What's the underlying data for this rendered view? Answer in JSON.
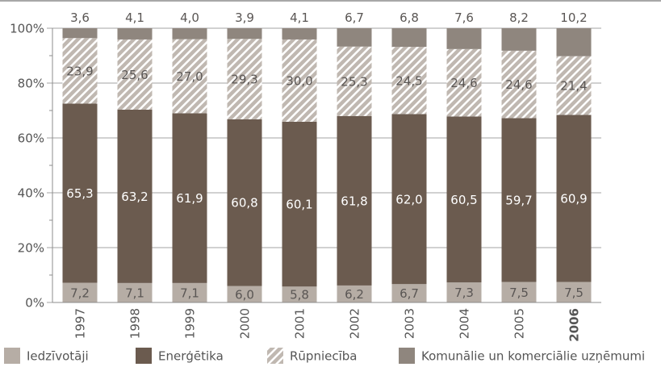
{
  "chart_data": {
    "type": "bar",
    "stacked": true,
    "normalized_percent": true,
    "categories": [
      "1997",
      "1998",
      "1999",
      "2000",
      "2001",
      "2002",
      "2003",
      "2004",
      "2005",
      "2006"
    ],
    "category_bold": [
      false,
      false,
      false,
      false,
      false,
      false,
      false,
      false,
      false,
      true
    ],
    "ylim": [
      0,
      100
    ],
    "yticks": [
      {
        "value": 0,
        "label": "0%"
      },
      {
        "value": 20,
        "label": "20%"
      },
      {
        "value": 40,
        "label": "40%"
      },
      {
        "value": 60,
        "label": "60%"
      },
      {
        "value": 80,
        "label": "80%"
      },
      {
        "value": 100,
        "label": "100%"
      }
    ],
    "minor_tick_step": 10,
    "grid": true,
    "legend": "bottom",
    "series": [
      {
        "name": "Iedzīvotāji",
        "values": [
          7.2,
          7.1,
          7.1,
          6.0,
          5.8,
          6.2,
          6.7,
          7.3,
          7.5,
          7.5
        ],
        "labels": [
          "7,2",
          "7,1",
          "7,1",
          "6,0",
          "5,8",
          "6,2",
          "6,7",
          "7,3",
          "7,5",
          "7,5"
        ],
        "color": "#b6ada5",
        "label_color": "#5a5654"
      },
      {
        "name": "Enerģētika",
        "values": [
          65.3,
          63.2,
          61.9,
          60.8,
          60.1,
          61.8,
          62.0,
          60.5,
          59.7,
          60.9
        ],
        "labels": [
          "65,3",
          "63,2",
          "61,9",
          "60,8",
          "60,1",
          "61,8",
          "62,0",
          "60,5",
          "59,7",
          "60,9"
        ],
        "color": "#6b5b4f",
        "label_color": "#ffffff"
      },
      {
        "name": "Rūpniecība",
        "values": [
          23.9,
          25.6,
          27.0,
          29.3,
          30.0,
          25.3,
          24.5,
          24.6,
          24.6,
          21.4
        ],
        "labels": [
          "23,9",
          "25,6",
          "27,0",
          "29,3",
          "30,0",
          "25,3",
          "24,5",
          "24,6",
          "24,6",
          "21,4"
        ],
        "color": "#c0b8b1",
        "hatch_color": "#ffffff",
        "label_color": "#5a5654"
      },
      {
        "name": "Komunālie un komerciālie uzņēmumi",
        "values": [
          3.6,
          4.1,
          4.0,
          3.9,
          4.1,
          6.7,
          6.8,
          7.6,
          8.2,
          10.2
        ],
        "labels": [
          "3,6",
          "4,1",
          "4,0",
          "3,9",
          "4,1",
          "6,7",
          "6,8",
          "7,6",
          "8,2",
          "10,2"
        ],
        "color": "#8f867e",
        "label_color": "#5a5654"
      }
    ]
  }
}
